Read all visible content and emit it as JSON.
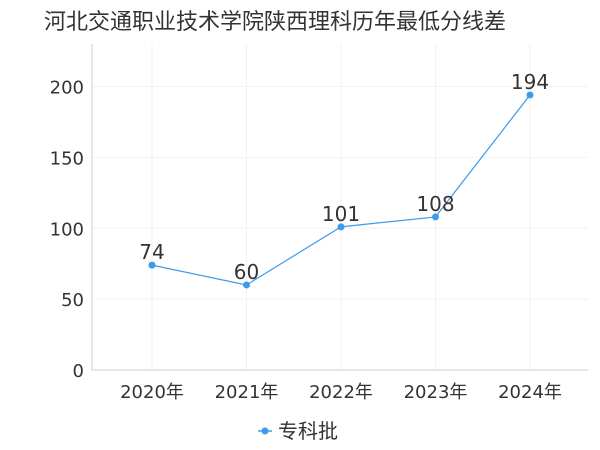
{
  "chart_data": {
    "type": "line",
    "title": "河北交通职业技术学院陕西理科历年最低分线差",
    "xlabel": "",
    "ylabel": "",
    "categories": [
      "2020年",
      "2021年",
      "2022年",
      "2023年",
      "2024年"
    ],
    "series": [
      {
        "name": "专科批",
        "values": [
          74,
          60,
          101,
          108,
          194
        ]
      }
    ],
    "y_ticks": [
      "0",
      "50",
      "100",
      "150",
      "200"
    ],
    "ylim": [
      0,
      230
    ],
    "grid": true,
    "legend_position": "bottom-center",
    "data_labels": true,
    "colors": {
      "series": "#3e9be9",
      "axis": "#cccccc",
      "grid": "#f2f2f2",
      "text": "#333333"
    }
  }
}
